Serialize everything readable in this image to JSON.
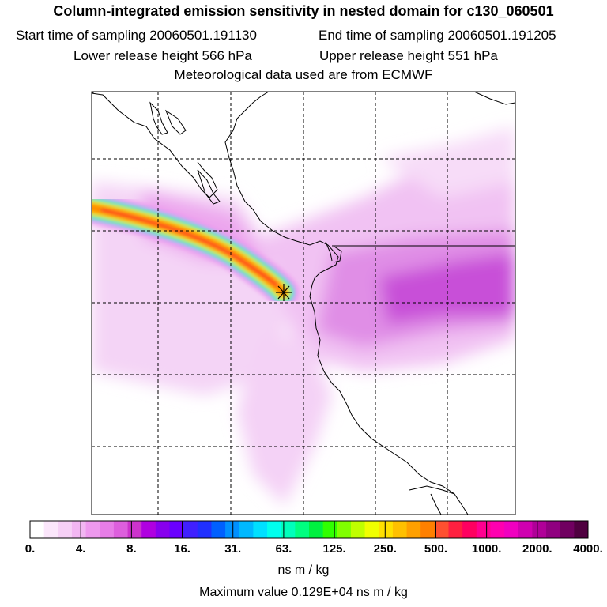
{
  "title": "Column-integrated emission sensitivity in nested domain for c130_060501",
  "sampling": {
    "start": "Start time of sampling 20060501.191130",
    "end": "End time of sampling 20060501.191205"
  },
  "release": {
    "lower": "Lower release height  566 hPa",
    "upper": "Upper release height  551 hPa"
  },
  "met_source": "Meteorological data used are from ECMWF",
  "colorbar": {
    "tick_labels": [
      "0.",
      "4.",
      "8.",
      "16.",
      "31.",
      "63.",
      "125.",
      "250.",
      "500.",
      "1000.",
      "2000.",
      "4000."
    ],
    "colors": [
      "#ffffff",
      "#fbe6fb",
      "#f6d0f6",
      "#f2b6f2",
      "#ee99ee",
      "#e77de7",
      "#dd5fdd",
      "#cc33cc",
      "#b000e0",
      "#8800ee",
      "#6a00ff",
      "#4020ff",
      "#2030ff",
      "#0060ff",
      "#0090ff",
      "#00b8ff",
      "#00e0ff",
      "#00ffee",
      "#00ffbb",
      "#00ff80",
      "#00f040",
      "#30ff00",
      "#80ff00",
      "#c0ff00",
      "#f0ff00",
      "#ffe000",
      "#ffc000",
      "#ffa000",
      "#ff8000",
      "#ff5030",
      "#ff2040",
      "#ff0060",
      "#ff0090",
      "#ff00b0",
      "#f000c0",
      "#d000b0",
      "#b00098",
      "#900080",
      "#700060",
      "#500040"
    ],
    "units": "ns m / kg"
  },
  "max_value": "Maximum value  0.129E+04 ns m / kg",
  "legend_colors": {
    "plume_high": "#ff2020",
    "plume_mid": "#ffee00",
    "plume_low": "#00e0ff",
    "halo_dark": "#c040e0",
    "halo_light": "#f6d0f6"
  }
}
